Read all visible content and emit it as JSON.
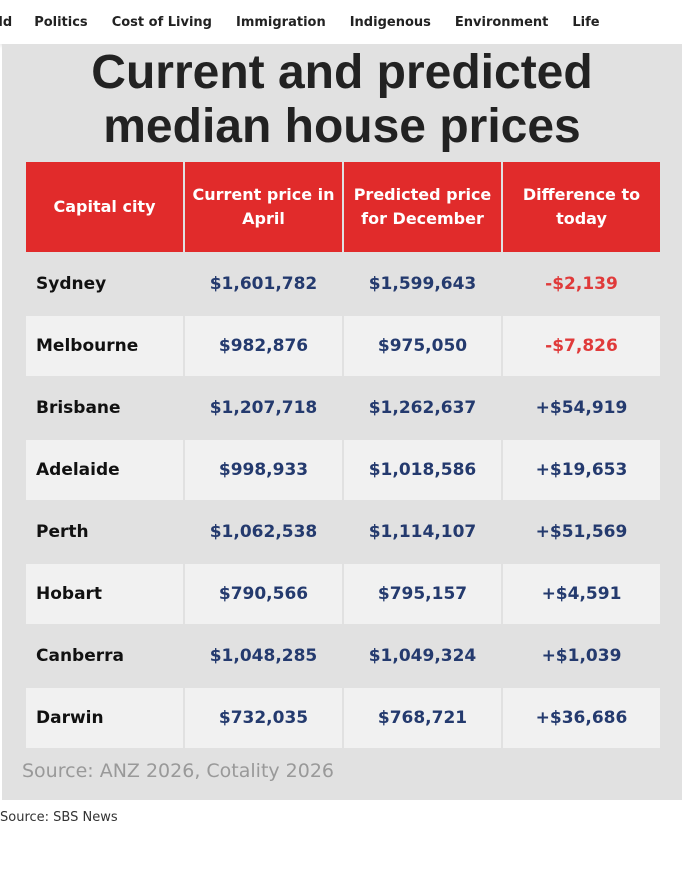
{
  "graphic": {
    "title_line1": "Current and predicted",
    "title_line2": "median house prices",
    "headers": [
      "Capital city",
      "Current price in April",
      "Predicted price for December",
      "Difference to today"
    ],
    "rows": [
      [
        "Sydney",
        "$1,601,782",
        "$1,599,643",
        "-$2,139"
      ],
      [
        "Melbourne",
        "$982,876",
        "$975,050",
        "-$7,826"
      ],
      [
        "Brisbane",
        "$1,207,718",
        "$1,262,637",
        "+$54,919"
      ],
      [
        "Adelaide",
        "$998,933",
        "$1,018,586",
        "+$19,653"
      ],
      [
        "Perth",
        "$1,062,538",
        "$1,114,107",
        "+$51,569"
      ],
      [
        "Hobart",
        "$790,566",
        "$795,157",
        "+$4,591"
      ],
      [
        "Canberra",
        "$1,048,285",
        "$1,049,324",
        "+$1,039"
      ],
      [
        "Darwin",
        "$732,035",
        "$768,721",
        "+$36,686"
      ]
    ],
    "source": "Source: ANZ 2026, Cotality 2026",
    "colors": {
      "header": "#e12b2b",
      "value": "#243a6e",
      "negative": "#e03a3a"
    }
  },
  "nav": {
    "items": [
      "rld",
      "Politics",
      "Cost of Living",
      "Immigration",
      "Indigenous",
      "Environment",
      "Life"
    ]
  },
  "caption": "Source: SBS News"
}
